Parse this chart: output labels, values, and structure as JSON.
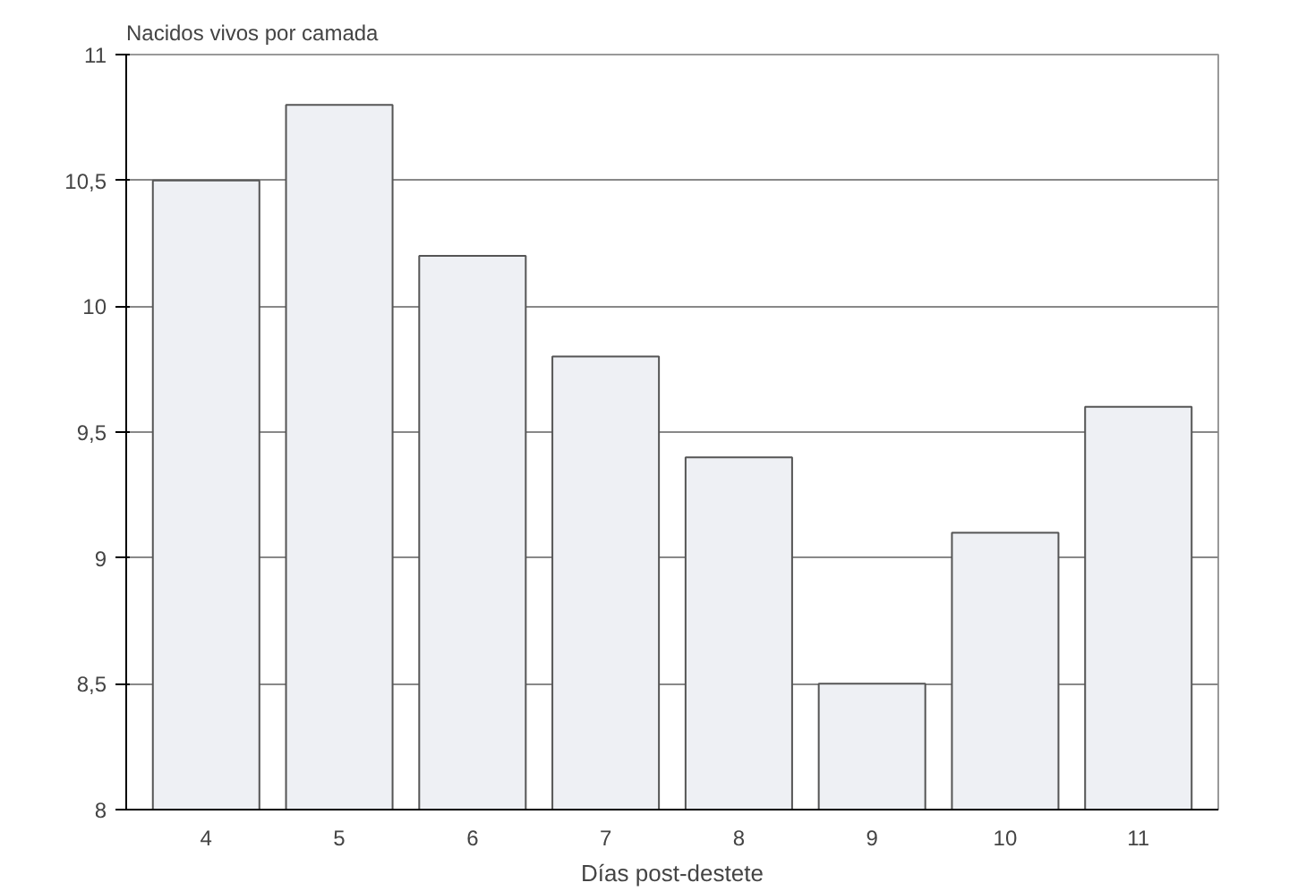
{
  "chart_data": {
    "type": "bar",
    "ylabel": "Nacidos vivos por camada",
    "xlabel": "Días post-destete",
    "categories": [
      "4",
      "5",
      "6",
      "7",
      "8",
      "9",
      "10",
      "11"
    ],
    "values": [
      10.5,
      10.8,
      10.2,
      9.8,
      9.4,
      8.5,
      9.1,
      9.6
    ],
    "color": "#eef0f4",
    "ylim": [
      8,
      11
    ],
    "yticks": [
      8,
      {
        "value": 8.5,
        "label": "8,5"
      },
      9,
      {
        "value": 9.5,
        "label": "9,5"
      },
      10,
      {
        "value": 10.5,
        "label": "10,5"
      },
      11
    ],
    "grid": "y"
  }
}
